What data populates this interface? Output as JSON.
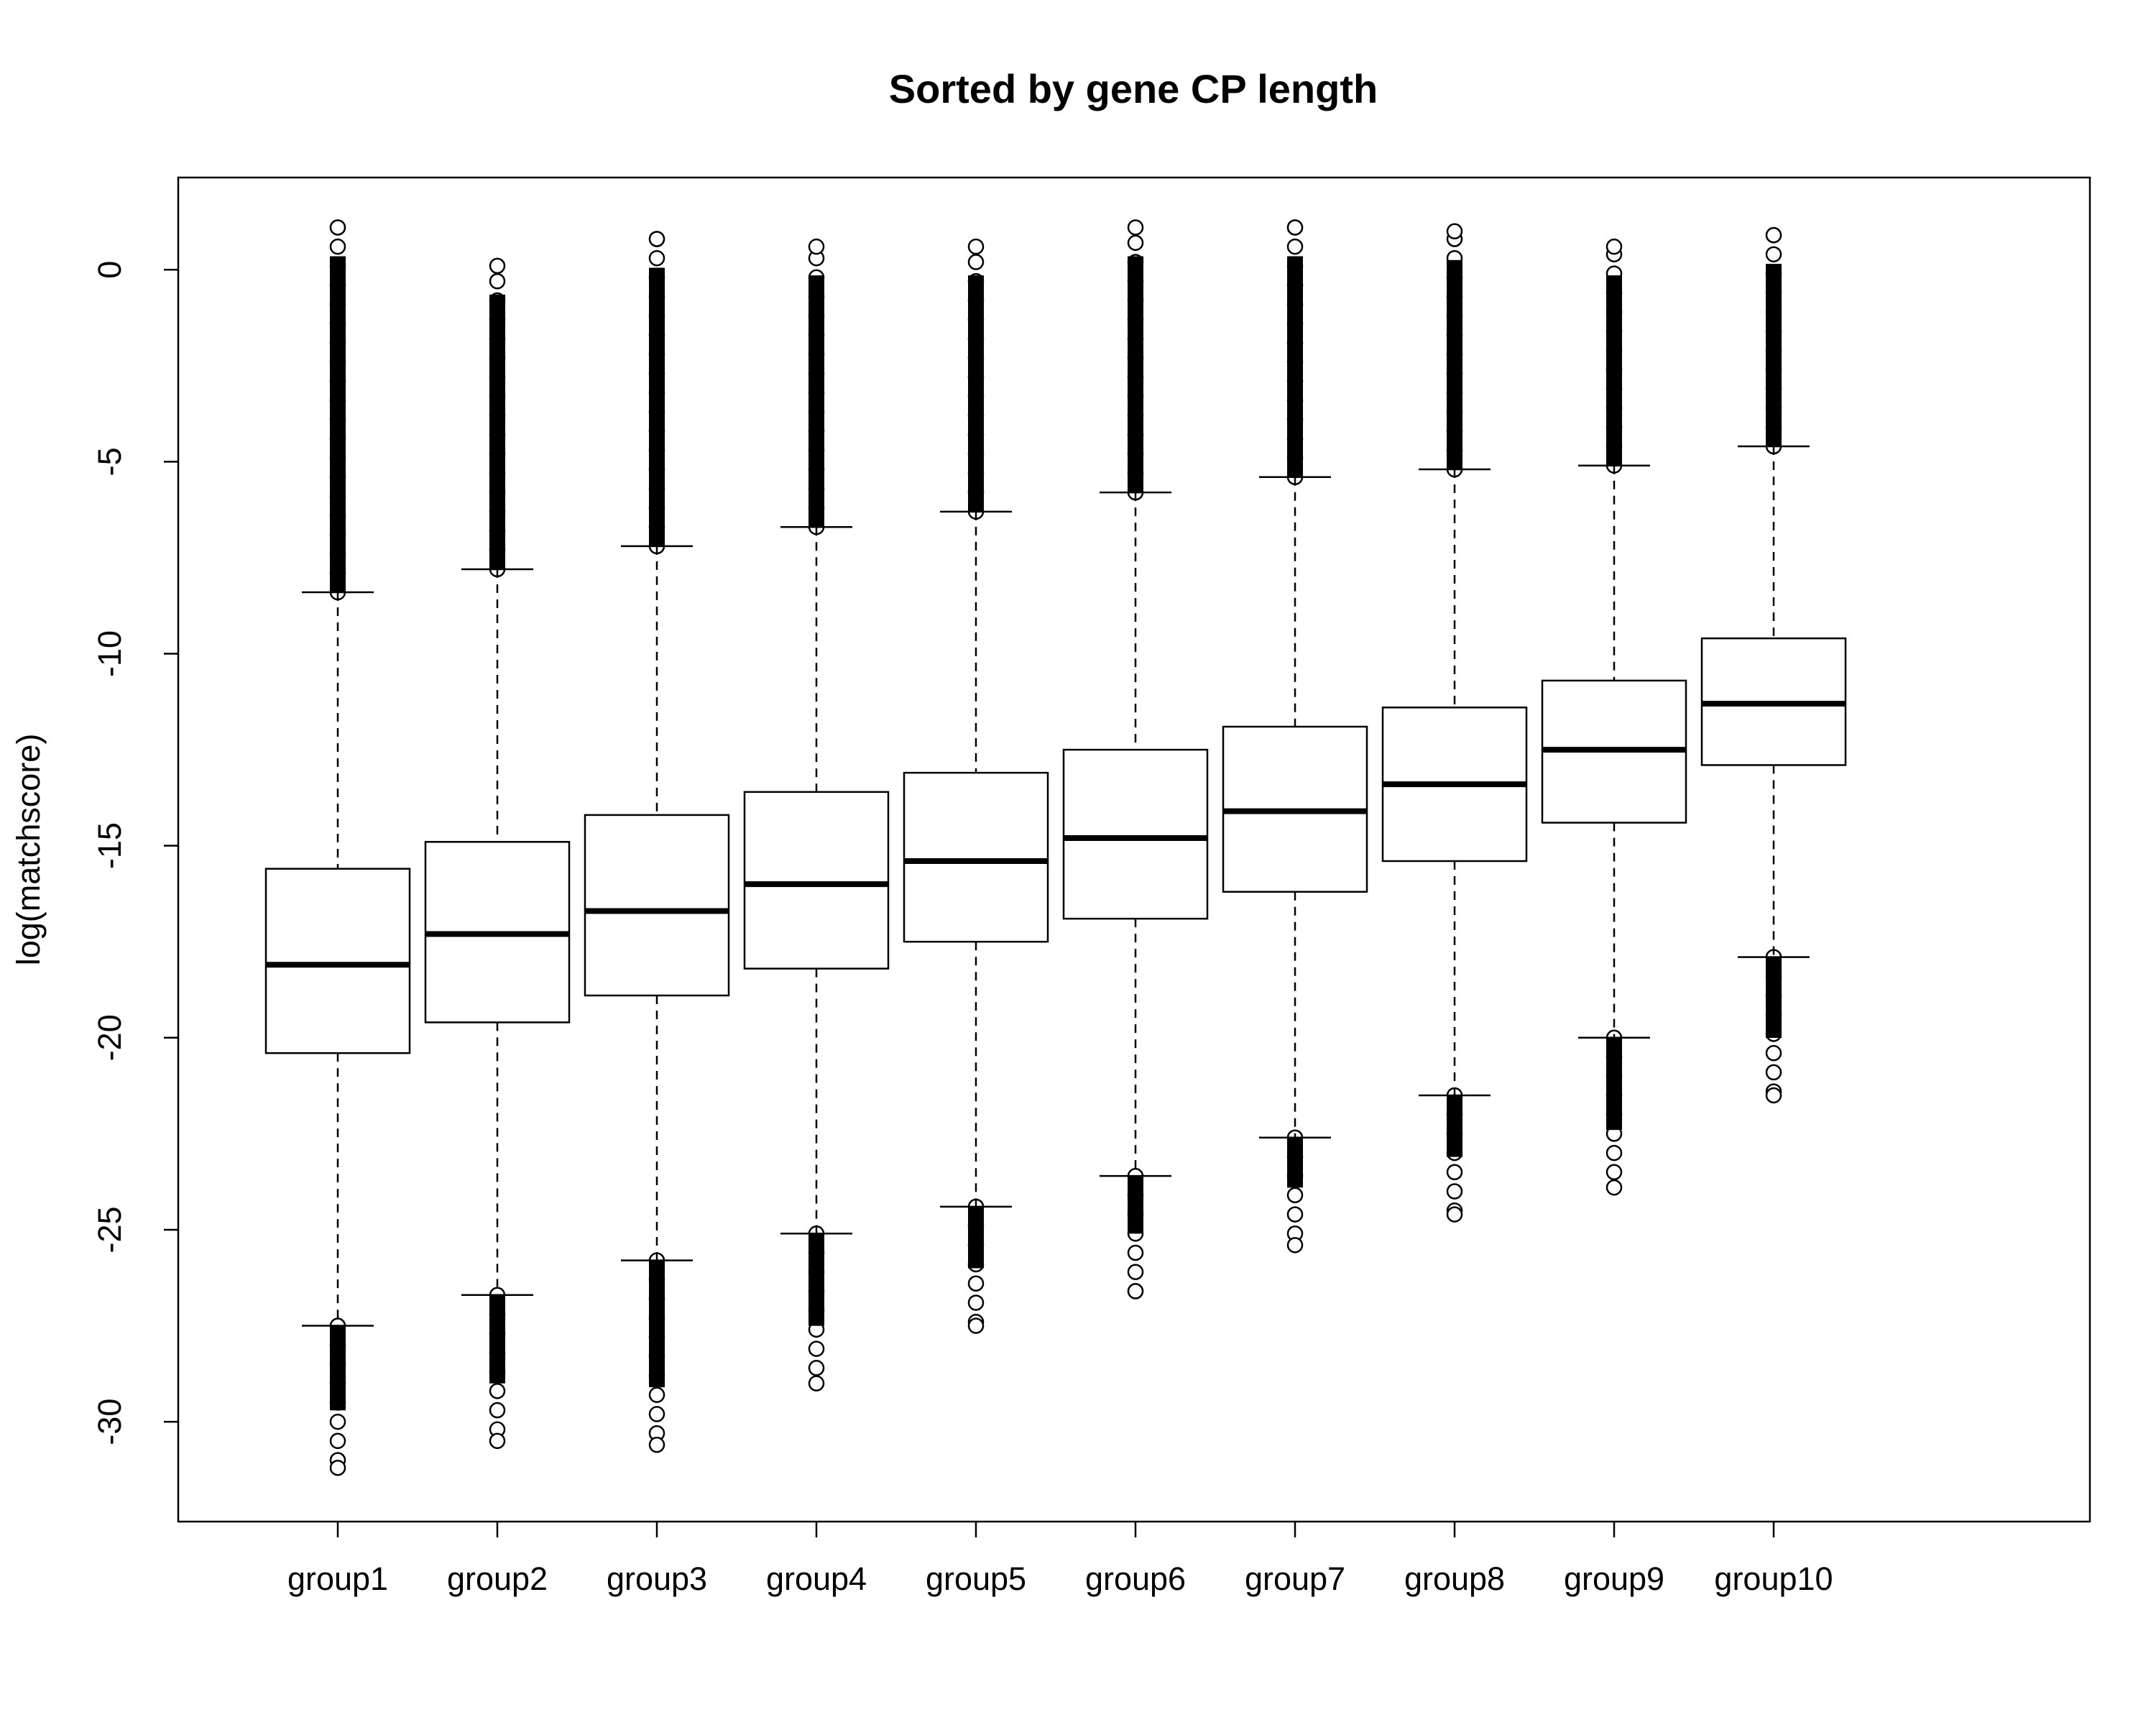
{
  "chart_data": {
    "type": "box",
    "title": "Sorted by gene CP length",
    "xlabel": "",
    "ylabel": "log(matchscore)",
    "ylim": [
      -32.6,
      2.4
    ],
    "yticks": [
      0,
      -5,
      -10,
      -15,
      -20,
      -25,
      -30
    ],
    "grid": false,
    "legend": "none",
    "categories": [
      "group1",
      "group2",
      "group3",
      "group4",
      "group5",
      "group6",
      "group7",
      "group8",
      "group9",
      "group10"
    ],
    "boxes": [
      {
        "category": "group1",
        "lower_whisker": -27.5,
        "q1": -20.4,
        "median": -18.1,
        "q3": -15.6,
        "upper_whisker": -8.4,
        "outliers_low": [
          -27.5,
          -31.2
        ],
        "outliers_high": [
          -8.4,
          1.1
        ]
      },
      {
        "category": "group2",
        "lower_whisker": -26.7,
        "q1": -19.6,
        "median": -17.3,
        "q3": -14.9,
        "upper_whisker": -7.8,
        "outliers_low": [
          -26.7,
          -30.5
        ],
        "outliers_high": [
          -7.8,
          0.1
        ]
      },
      {
        "category": "group3",
        "lower_whisker": -25.8,
        "q1": -18.9,
        "median": -16.7,
        "q3": -14.2,
        "upper_whisker": -7.2,
        "outliers_low": [
          -25.8,
          -30.6
        ],
        "outliers_high": [
          -7.2,
          0.8
        ]
      },
      {
        "category": "group4",
        "lower_whisker": -25.1,
        "q1": -18.2,
        "median": -16.0,
        "q3": -13.6,
        "upper_whisker": -6.7,
        "outliers_low": [
          -25.1,
          -29.0
        ],
        "outliers_high": [
          -6.7,
          0.6
        ]
      },
      {
        "category": "group5",
        "lower_whisker": -24.4,
        "q1": -17.5,
        "median": -15.4,
        "q3": -13.1,
        "upper_whisker": -6.3,
        "outliers_low": [
          -24.4,
          -27.5
        ],
        "outliers_high": [
          -6.3,
          0.6
        ]
      },
      {
        "category": "group6",
        "lower_whisker": -23.6,
        "q1": -16.9,
        "median": -14.8,
        "q3": -12.5,
        "upper_whisker": -5.8,
        "outliers_low": [
          -23.6,
          -26.6
        ],
        "outliers_high": [
          -5.8,
          1.1
        ]
      },
      {
        "category": "group7",
        "lower_whisker": -22.6,
        "q1": -16.2,
        "median": -14.1,
        "q3": -11.9,
        "upper_whisker": -5.4,
        "outliers_low": [
          -22.6,
          -25.4
        ],
        "outliers_high": [
          -5.4,
          1.1
        ]
      },
      {
        "category": "group8",
        "lower_whisker": -21.5,
        "q1": -15.4,
        "median": -13.4,
        "q3": -11.4,
        "upper_whisker": -5.2,
        "outliers_low": [
          -21.5,
          -24.6
        ],
        "outliers_high": [
          -5.2,
          1.0
        ]
      },
      {
        "category": "group9",
        "lower_whisker": -20.0,
        "q1": -14.4,
        "median": -12.5,
        "q3": -10.7,
        "upper_whisker": -5.1,
        "outliers_low": [
          -20.0,
          -23.9
        ],
        "outliers_high": [
          -5.1,
          0.6
        ]
      },
      {
        "category": "group10",
        "lower_whisker": -17.9,
        "q1": -12.9,
        "median": -11.3,
        "q3": -9.6,
        "upper_whisker": -4.6,
        "outliers_low": [
          -17.9,
          -21.5
        ],
        "outliers_high": [
          -4.6,
          0.9
        ]
      }
    ]
  }
}
